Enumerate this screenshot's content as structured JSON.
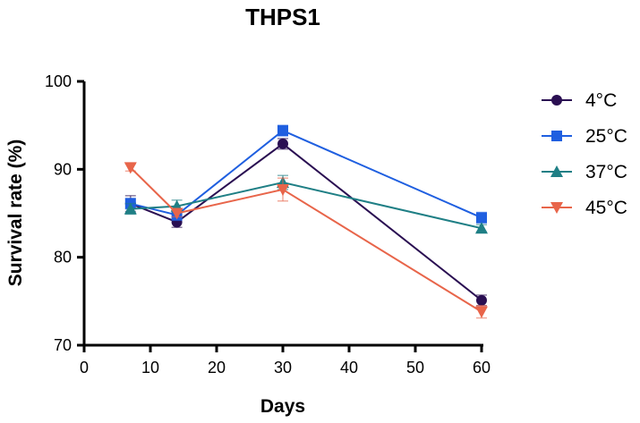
{
  "chart_data": {
    "type": "line",
    "title": "THPS1",
    "xlabel": "Days",
    "ylabel": "Survival rate (%)",
    "xlim": [
      0,
      60
    ],
    "ylim": [
      70,
      100
    ],
    "xticks": [
      0,
      10,
      20,
      30,
      40,
      50,
      60
    ],
    "yticks": [
      70,
      80,
      90,
      100
    ],
    "x": [
      7,
      14,
      30,
      60
    ],
    "grid": false,
    "legend_position": "right",
    "series": [
      {
        "name": "4°C",
        "color": "#2a0f52",
        "marker": "circle",
        "x": [
          7,
          14,
          30,
          60
        ],
        "values": [
          86.1,
          84.0,
          92.9,
          75.1
        ],
        "errors": [
          0.9,
          0.6,
          0.6,
          0.6
        ]
      },
      {
        "name": "25°C",
        "color": "#1f5fe0",
        "marker": "square",
        "x": [
          7,
          14,
          30,
          60
        ],
        "values": [
          86.1,
          84.8,
          94.4,
          84.5
        ],
        "errors": [
          0.6,
          0.6,
          0.6,
          0.6
        ]
      },
      {
        "name": "37°C",
        "color": "#1f7f85",
        "marker": "triangle-up",
        "x": [
          7,
          14,
          30,
          60
        ],
        "values": [
          85.5,
          85.8,
          88.5,
          83.3
        ],
        "errors": [
          0.6,
          0.7,
          0.8,
          0.4
        ]
      },
      {
        "name": "45°C",
        "color": "#e8654a",
        "marker": "triangle-down",
        "x": [
          7,
          14,
          30,
          60
        ],
        "values": [
          90.2,
          85.0,
          87.7,
          73.8
        ],
        "errors": [
          0.4,
          0.4,
          1.3,
          0.7
        ]
      }
    ]
  }
}
